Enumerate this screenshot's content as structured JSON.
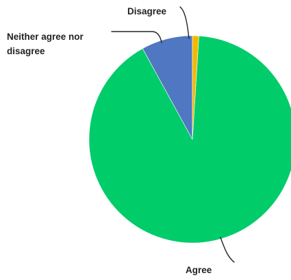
{
  "chart_data": {
    "type": "pie",
    "title": "",
    "slices": [
      {
        "label": "Agree",
        "value": 91,
        "color": "#00CC6A"
      },
      {
        "label": "Neither agree nor disagree",
        "label_lines": [
          "Neither agree nor",
          "disagree"
        ],
        "value": 8,
        "color": "#4F77C2"
      },
      {
        "label": "Disagree",
        "value": 1,
        "color": "#F5B800"
      }
    ],
    "legend": "none",
    "labels": "outside-with-leader-lines"
  }
}
